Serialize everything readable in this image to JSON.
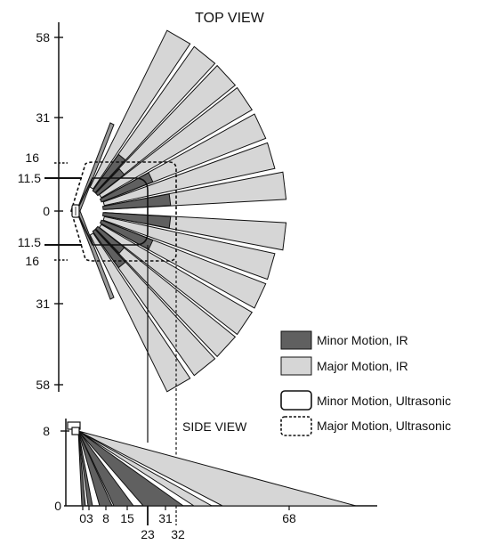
{
  "top_view": {
    "title": "TOP VIEW",
    "axis_labels": [
      "58",
      "31",
      "16",
      "11.5",
      "0",
      "11.5",
      "16",
      "31",
      "58"
    ]
  },
  "side_view": {
    "title": "SIDE VIEW",
    "y_labels": [
      "8",
      "0"
    ],
    "x_labels": [
      "03",
      "8",
      "15",
      "31",
      "68",
      "23",
      "32"
    ]
  },
  "legend": {
    "items": [
      {
        "label": "Minor Motion, IR",
        "color": "#606060"
      },
      {
        "label": "Major Motion, IR",
        "color": "#d6d6d6"
      },
      {
        "label": "Minor Motion, Ultrasonic"
      },
      {
        "label": "Major Motion, Ultrasonic"
      }
    ]
  }
}
